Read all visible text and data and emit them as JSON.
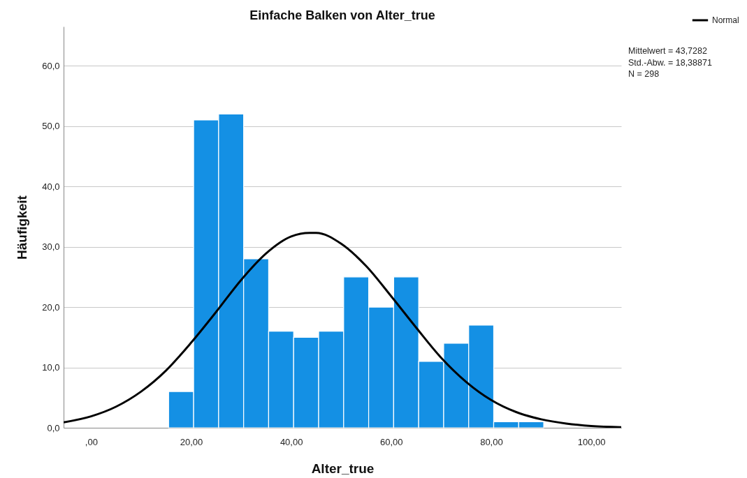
{
  "chart_data": {
    "type": "histogram",
    "title": "Einfache Balken von Alter_true",
    "xlabel": "Alter_true",
    "ylabel": "Häufigkeit",
    "bins": [
      15.5,
      20.5,
      25.5,
      30.5,
      35.5,
      40.5,
      45.5,
      50.5,
      55.5,
      60.5,
      65.5,
      70.5,
      75.5,
      80.5,
      85.5,
      90.5
    ],
    "series": [
      {
        "color": "#1490e4",
        "values": [
          6,
          51,
          52,
          28,
          16,
          15,
          16,
          25,
          20,
          25,
          11,
          14,
          17,
          1,
          1
        ]
      },
      {
        "type": "line",
        "name": "Normal",
        "color": "#000000",
        "x": [
          -5.5,
          0,
          5,
          10,
          15,
          20,
          25,
          30,
          35,
          40,
          43.7,
          45,
          50,
          55,
          60,
          65,
          70,
          75,
          80,
          85,
          90,
          95,
          100,
          106
        ],
        "values": [
          0.9,
          1.9,
          3.5,
          6.0,
          9.5,
          14.1,
          19.2,
          24.5,
          28.9,
          31.7,
          32.3,
          32.3,
          30.5,
          26.8,
          21.8,
          16.6,
          11.6,
          7.6,
          4.6,
          2.6,
          1.4,
          0.7,
          0.3,
          0.1
        ]
      }
    ],
    "xlim": [
      -5.5,
      106
    ],
    "ylim": [
      0,
      66.5
    ],
    "xticks": [
      {
        "value": 0,
        "label": ",00"
      },
      {
        "value": 20,
        "label": "20,00"
      },
      {
        "value": 40,
        "label": "40,00"
      },
      {
        "value": 60,
        "label": "60,00"
      },
      {
        "value": 80,
        "label": "80,00"
      },
      {
        "value": 100,
        "label": "100,00"
      }
    ],
    "yticks": [
      {
        "value": 0,
        "label": "0,0"
      },
      {
        "value": 10,
        "label": "10,0"
      },
      {
        "value": 20,
        "label": "20,0"
      },
      {
        "value": 30,
        "label": "30,0"
      },
      {
        "value": 40,
        "label": "40,0"
      },
      {
        "value": 50,
        "label": "50,0"
      },
      {
        "value": 60,
        "label": "60,0"
      }
    ],
    "grid": "y",
    "legend": "top right",
    "annotations": [
      "Mittelwert = 43,7282",
      "Std.-Abw. = 18,38871",
      "N = 298"
    ]
  }
}
